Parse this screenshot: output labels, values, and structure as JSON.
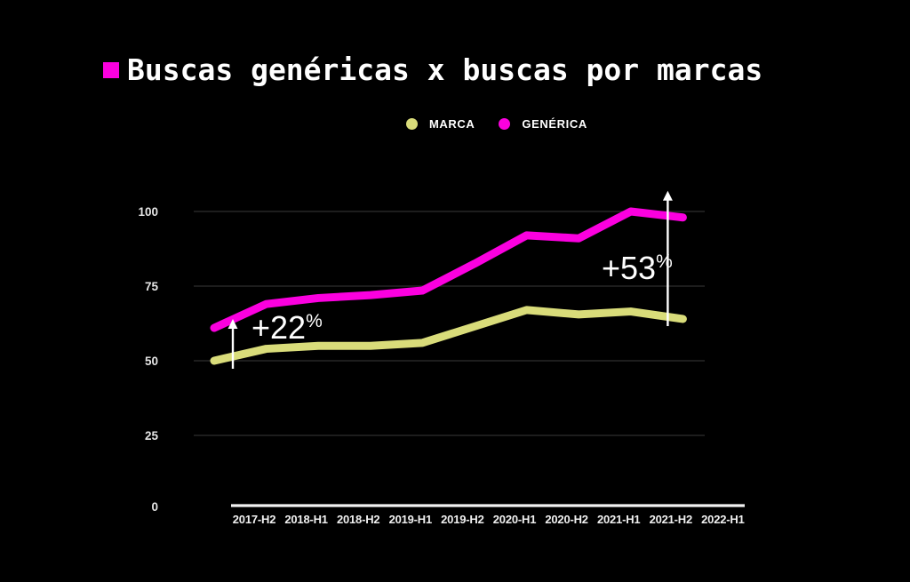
{
  "title": "Buscas genéricas x buscas por marcas",
  "title_bullet_color": "#fb00df",
  "legend": {
    "items": [
      {
        "label": "MARCA",
        "color": "#d9dc7a"
      },
      {
        "label": "GENÉRICA",
        "color": "#fb00df"
      }
    ]
  },
  "chart_data": {
    "type": "line",
    "categories": [
      "2017-H2",
      "2018-H1",
      "2018-H2",
      "2019-H1",
      "2019-H2",
      "2020-H1",
      "2020-H2",
      "2021-H1",
      "2021-H2",
      "2022-H1"
    ],
    "series": [
      {
        "name": "MARCA",
        "color": "#d9dc7a",
        "values": [
          50,
          54,
          55,
          55,
          56,
          61.5,
          67,
          65.5,
          66.5,
          64
        ]
      },
      {
        "name": "GENÉRICA",
        "color": "#fb00df",
        "values": [
          61,
          69,
          71,
          72,
          73.5,
          82.5,
          92,
          91,
          100,
          98
        ]
      }
    ],
    "title": "",
    "xlabel": "",
    "ylabel": "",
    "ylim": [
      0,
      100
    ],
    "yticks": [
      0,
      25,
      50,
      75,
      100
    ],
    "grid": true,
    "legend_position": "top",
    "background": "#000000",
    "grid_color": "#2f2f2f",
    "axis_color": "#f2f2f2",
    "tick_label_color": "#e5e5e5",
    "annotation_color": "#ffffff",
    "annotations": [
      {
        "label": "+22",
        "suffix": "%",
        "category": "2017-H2",
        "from_value": 50,
        "to_value": 61
      },
      {
        "label": "+53",
        "suffix": "%",
        "category": "2022-H1",
        "from_value": 64,
        "to_value": 98
      }
    ]
  }
}
